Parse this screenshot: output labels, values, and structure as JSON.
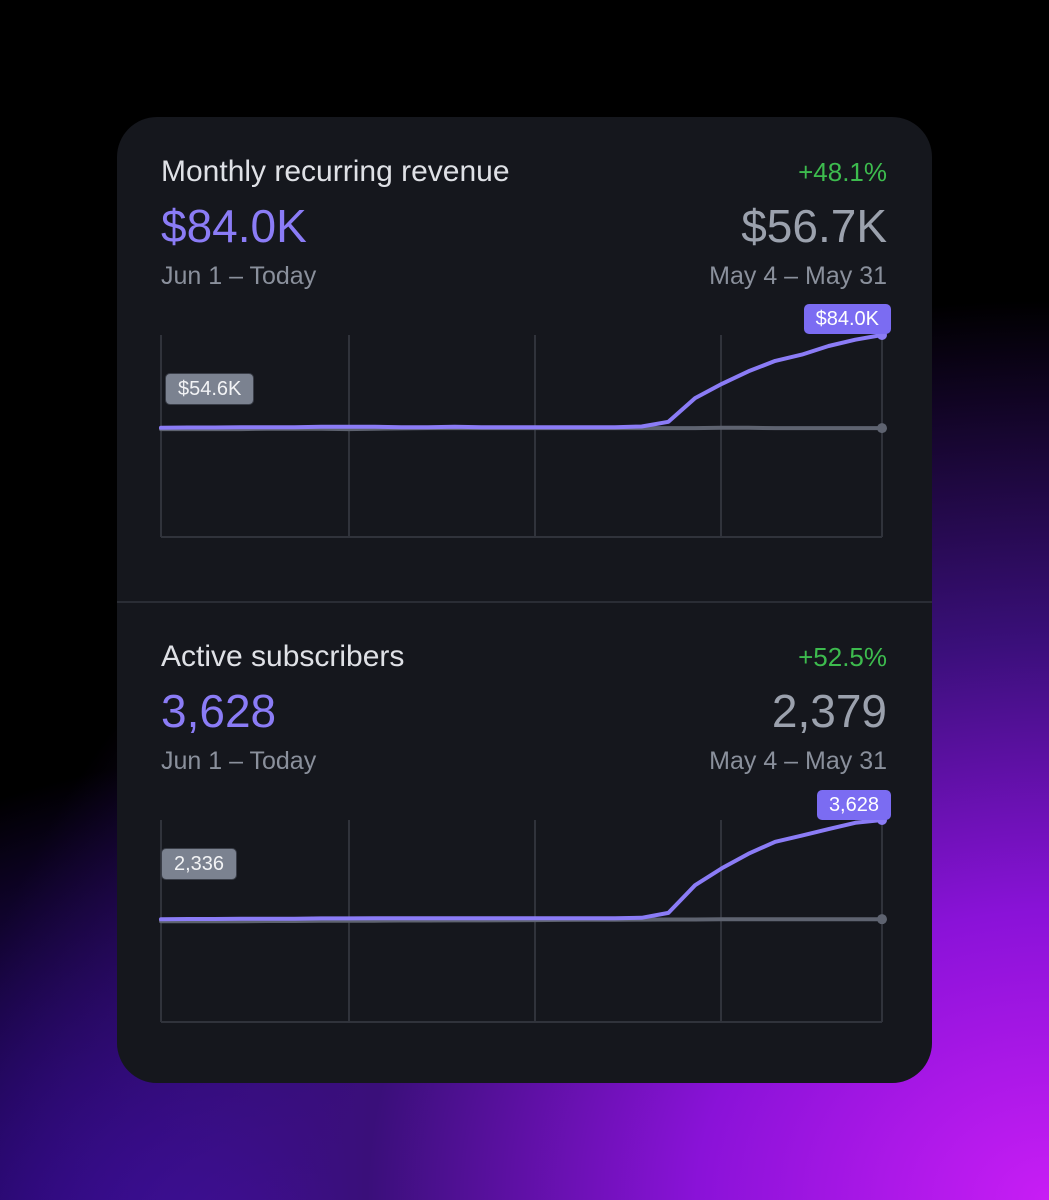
{
  "colors": {
    "current_series": "#8b7cf6",
    "previous_series": "#5e6370",
    "positive_change": "#3dbb4e",
    "card_background": "#15171d"
  },
  "metrics": [
    {
      "title": "Monthly recurring revenue",
      "change": "+48.1%",
      "current_value": "$84.0K",
      "previous_value": "$56.7K",
      "current_range": "Jun 1 – Today",
      "previous_range": "May 4 – May 31",
      "start_label": "$54.6K",
      "end_label": "$84.0K"
    },
    {
      "title": "Active subscribers",
      "change": "+52.5%",
      "current_value": "3,628",
      "previous_value": "2,379",
      "current_range": "Jun 1 – Today",
      "previous_range": "May 4 – May 31",
      "start_label": "2,336",
      "end_label": "3,628"
    }
  ],
  "chart_data": [
    {
      "type": "line",
      "x": [
        0,
        1,
        2,
        3,
        4,
        5,
        6,
        7,
        8,
        9,
        10,
        11,
        12,
        13,
        14,
        15,
        16,
        17,
        18,
        19,
        20,
        21,
        22,
        23,
        24,
        25,
        26,
        27
      ],
      "series": [
        {
          "values": [
            54.6,
            54.7,
            54.7,
            54.8,
            54.8,
            54.8,
            54.9,
            54.9,
            54.9,
            54.8,
            54.8,
            54.9,
            54.8,
            54.8,
            54.8,
            54.8,
            54.8,
            54.8,
            55.0,
            56.5,
            64.0,
            68.5,
            72.5,
            75.8,
            77.8,
            80.5,
            82.5,
            84.0
          ]
        },
        {
          "values": [
            54.2,
            54.2,
            54.2,
            54.2,
            54.3,
            54.3,
            54.3,
            54.2,
            54.3,
            54.4,
            54.5,
            54.5,
            54.5,
            54.5,
            54.5,
            54.5,
            54.5,
            54.5,
            54.5,
            54.5,
            54.5,
            54.6,
            54.6,
            54.5,
            54.5,
            54.5,
            54.5,
            54.5
          ]
        }
      ],
      "ylim": [
        20,
        84
      ]
    },
    {
      "type": "line",
      "x": [
        0,
        1,
        2,
        3,
        4,
        5,
        6,
        7,
        8,
        9,
        10,
        11,
        12,
        13,
        14,
        15,
        16,
        17,
        18,
        19,
        20,
        21,
        22,
        23,
        24,
        25,
        26,
        27
      ],
      "series": [
        {
          "values": [
            2336,
            2340,
            2340,
            2342,
            2344,
            2344,
            2348,
            2348,
            2350,
            2350,
            2350,
            2350,
            2350,
            2350,
            2350,
            2350,
            2350,
            2350,
            2356,
            2420,
            2780,
            3000,
            3190,
            3345,
            3425,
            3510,
            3592,
            3628
          ]
        },
        {
          "values": [
            2310,
            2310,
            2312,
            2312,
            2314,
            2314,
            2316,
            2316,
            2318,
            2320,
            2320,
            2322,
            2322,
            2324,
            2326,
            2328,
            2330,
            2330,
            2332,
            2334,
            2334,
            2336,
            2336,
            2336,
            2336,
            2336,
            2338,
            2338
          ]
        }
      ],
      "ylim": [
        1000,
        3628
      ]
    }
  ]
}
